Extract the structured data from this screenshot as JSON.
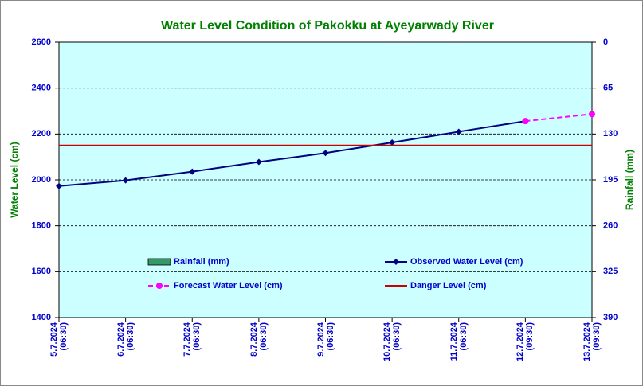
{
  "chart_data": {
    "type": "line",
    "title": "Water Level Condition of Pakokku at Ayeyarwady River",
    "y_label": "Water Level (cm)",
    "y2_label": "Rainfall (mm)",
    "categories": [
      "5.7.2024\n(06:30)",
      "6.7.2024\n(06:30)",
      "7.7.2024\n(06:30)",
      "8.7.2024\n(06:30)",
      "9.7.2024\n(06:30)",
      "10.7.2024\n(06:30)",
      "11.7.2024\n(06:30)",
      "12.7.2024\n(09:30)",
      "13.7.2024\n(09:30)"
    ],
    "ylim": [
      1400,
      2600
    ],
    "yticks": [
      1400,
      1600,
      1800,
      2000,
      2200,
      2400,
      2600
    ],
    "y2lim": [
      390,
      0
    ],
    "y2ticks": [
      0,
      65,
      130,
      195,
      260,
      325,
      390
    ],
    "grid": true,
    "series": [
      {
        "name": "Rainfall (mm)",
        "color": "#339966",
        "axis": "y2",
        "style": "bar",
        "values": [
          null,
          null,
          null,
          null,
          null,
          null,
          null,
          null,
          null
        ]
      },
      {
        "name": "Observed Water Level (cm)",
        "color": "#000080",
        "style": "line",
        "marker": "diamond",
        "values": [
          1973,
          1998,
          2036,
          2078,
          2117,
          2163,
          2210,
          2256,
          null
        ]
      },
      {
        "name": "Forecast Water Level (cm)",
        "color": "#ff00ff",
        "style": "dashed",
        "marker": "circle",
        "values": [
          null,
          null,
          null,
          null,
          null,
          null,
          null,
          2256,
          2287
        ]
      },
      {
        "name": "Danger Level (cm)",
        "color": "#cc0000",
        "style": "line",
        "marker": null,
        "values": [
          2150,
          2150,
          2150,
          2150,
          2150,
          2150,
          2150,
          2150,
          2150
        ]
      }
    ]
  }
}
